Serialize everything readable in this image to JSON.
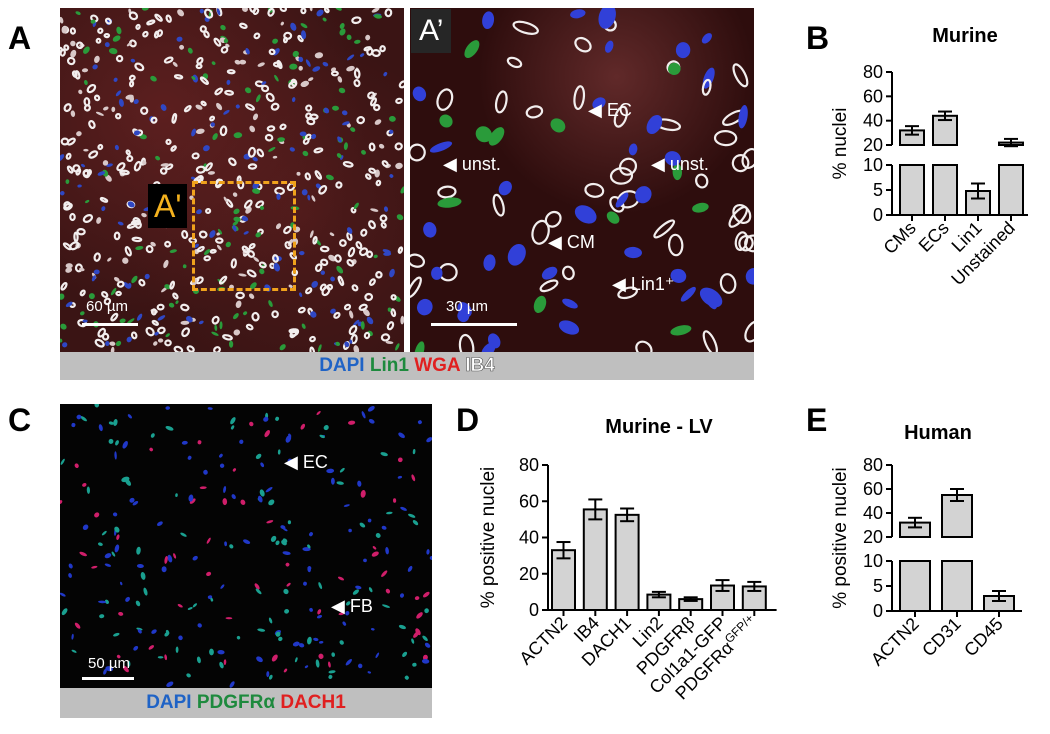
{
  "panels": {
    "A": "A",
    "B": "B",
    "C": "C",
    "D": "D",
    "E": "E"
  },
  "micrographs": {
    "A": {
      "inset_tag": "A'",
      "scale": "60 µm"
    },
    "A_prime": {
      "label": "A’",
      "scale": "30 µm",
      "annotations": [
        {
          "text": "EC"
        },
        {
          "text": "unst."
        },
        {
          "text": "unst."
        },
        {
          "text": "CM"
        },
        {
          "text": "Lin1⁺"
        }
      ]
    },
    "A_caption": [
      {
        "text": "DAPI",
        "color": "#1f63c6"
      },
      {
        "text": "Lin1",
        "color": "#1e8a3e"
      },
      {
        "text": "WGA",
        "color": "#e02020"
      },
      {
        "text": "IB4",
        "color": "#ffffff"
      }
    ],
    "C": {
      "scale": "50 µm",
      "annotations": [
        {
          "text": "EC"
        },
        {
          "text": "FB"
        }
      ]
    },
    "C_caption": [
      {
        "text": "DAPI",
        "color": "#1f63c6"
      },
      {
        "text": "PDGFRα",
        "color": "#1e8a3e"
      },
      {
        "text": "DACH1",
        "color": "#e02020"
      }
    ]
  },
  "chart_data": [
    {
      "id": "B",
      "type": "bar",
      "title": "Murine",
      "ylabel": "% nuclei",
      "categories": [
        "CMs",
        "ECs",
        "Lin1",
        "Unstained"
      ],
      "values": [
        32,
        44,
        4.8,
        22
      ],
      "errors": [
        3.5,
        3.5,
        1.5,
        3
      ],
      "axis_break": true,
      "upper_ticks": [
        "20",
        "40",
        "60",
        "80"
      ],
      "lower_ticks": [
        "0",
        "5",
        "10"
      ],
      "bar_color": "#d3d3d3"
    },
    {
      "id": "D",
      "type": "bar",
      "title": "Murine - LV",
      "ylabel": "% positive nuclei",
      "categories": [
        "ACTN2",
        "IB4",
        "DACH1",
        "Lin2",
        "PDGFRβ",
        "Col1a1-GFP",
        "PDGFRα GFP/+"
      ],
      "values": [
        33,
        55.5,
        52.5,
        8.5,
        6,
        13.5,
        13
      ],
      "errors": [
        4.5,
        5.5,
        3.5,
        1.5,
        1,
        3,
        2.5
      ],
      "ylim": [
        0,
        80
      ],
      "ticks": [
        "0",
        "20",
        "40",
        "60",
        "80"
      ],
      "bar_color": "#d3d3d3"
    },
    {
      "id": "E",
      "type": "bar",
      "title": "Human",
      "ylabel": "% positive nuclei",
      "categories": [
        "ACTN2",
        "CD31",
        "CD45"
      ],
      "values": [
        32,
        55,
        3
      ],
      "errors": [
        4,
        5,
        1
      ],
      "axis_break": true,
      "upper_ticks": [
        "20",
        "40",
        "60",
        "80"
      ],
      "lower_ticks": [
        "0",
        "5",
        "10"
      ],
      "bar_color": "#d3d3d3"
    }
  ]
}
